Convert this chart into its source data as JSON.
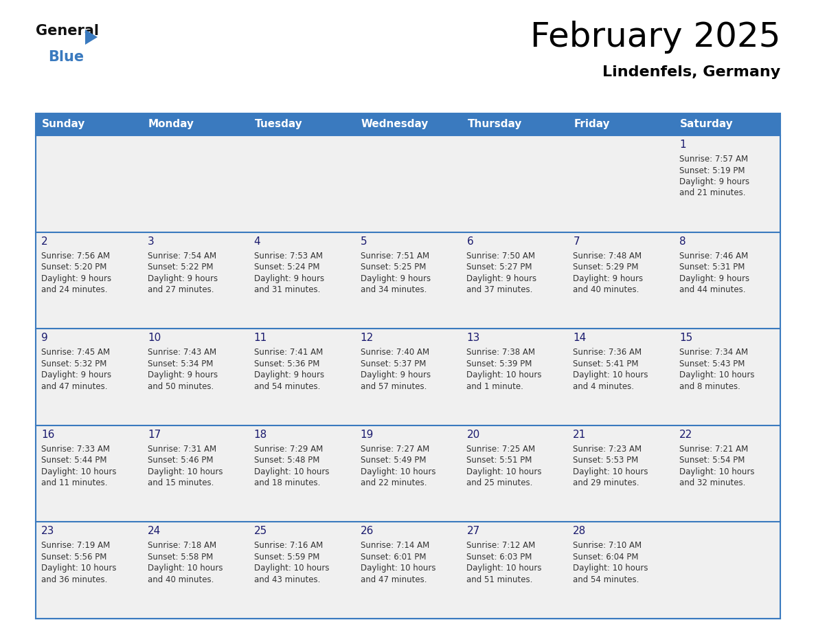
{
  "title": "February 2025",
  "subtitle": "Lindenfels, Germany",
  "header_bg": "#3a7abf",
  "header_text": "#ffffff",
  "cell_bg": "#f0f0f0",
  "day_number_color": "#1a1a6e",
  "info_text_color": "#333333",
  "separator_color": "#3a7abf",
  "days_of_week": [
    "Sunday",
    "Monday",
    "Tuesday",
    "Wednesday",
    "Thursday",
    "Friday",
    "Saturday"
  ],
  "calendar": [
    [
      {
        "day": null,
        "info": null
      },
      {
        "day": null,
        "info": null
      },
      {
        "day": null,
        "info": null
      },
      {
        "day": null,
        "info": null
      },
      {
        "day": null,
        "info": null
      },
      {
        "day": null,
        "info": null
      },
      {
        "day": 1,
        "info": "Sunrise: 7:57 AM\nSunset: 5:19 PM\nDaylight: 9 hours\nand 21 minutes."
      }
    ],
    [
      {
        "day": 2,
        "info": "Sunrise: 7:56 AM\nSunset: 5:20 PM\nDaylight: 9 hours\nand 24 minutes."
      },
      {
        "day": 3,
        "info": "Sunrise: 7:54 AM\nSunset: 5:22 PM\nDaylight: 9 hours\nand 27 minutes."
      },
      {
        "day": 4,
        "info": "Sunrise: 7:53 AM\nSunset: 5:24 PM\nDaylight: 9 hours\nand 31 minutes."
      },
      {
        "day": 5,
        "info": "Sunrise: 7:51 AM\nSunset: 5:25 PM\nDaylight: 9 hours\nand 34 minutes."
      },
      {
        "day": 6,
        "info": "Sunrise: 7:50 AM\nSunset: 5:27 PM\nDaylight: 9 hours\nand 37 minutes."
      },
      {
        "day": 7,
        "info": "Sunrise: 7:48 AM\nSunset: 5:29 PM\nDaylight: 9 hours\nand 40 minutes."
      },
      {
        "day": 8,
        "info": "Sunrise: 7:46 AM\nSunset: 5:31 PM\nDaylight: 9 hours\nand 44 minutes."
      }
    ],
    [
      {
        "day": 9,
        "info": "Sunrise: 7:45 AM\nSunset: 5:32 PM\nDaylight: 9 hours\nand 47 minutes."
      },
      {
        "day": 10,
        "info": "Sunrise: 7:43 AM\nSunset: 5:34 PM\nDaylight: 9 hours\nand 50 minutes."
      },
      {
        "day": 11,
        "info": "Sunrise: 7:41 AM\nSunset: 5:36 PM\nDaylight: 9 hours\nand 54 minutes."
      },
      {
        "day": 12,
        "info": "Sunrise: 7:40 AM\nSunset: 5:37 PM\nDaylight: 9 hours\nand 57 minutes."
      },
      {
        "day": 13,
        "info": "Sunrise: 7:38 AM\nSunset: 5:39 PM\nDaylight: 10 hours\nand 1 minute."
      },
      {
        "day": 14,
        "info": "Sunrise: 7:36 AM\nSunset: 5:41 PM\nDaylight: 10 hours\nand 4 minutes."
      },
      {
        "day": 15,
        "info": "Sunrise: 7:34 AM\nSunset: 5:43 PM\nDaylight: 10 hours\nand 8 minutes."
      }
    ],
    [
      {
        "day": 16,
        "info": "Sunrise: 7:33 AM\nSunset: 5:44 PM\nDaylight: 10 hours\nand 11 minutes."
      },
      {
        "day": 17,
        "info": "Sunrise: 7:31 AM\nSunset: 5:46 PM\nDaylight: 10 hours\nand 15 minutes."
      },
      {
        "day": 18,
        "info": "Sunrise: 7:29 AM\nSunset: 5:48 PM\nDaylight: 10 hours\nand 18 minutes."
      },
      {
        "day": 19,
        "info": "Sunrise: 7:27 AM\nSunset: 5:49 PM\nDaylight: 10 hours\nand 22 minutes."
      },
      {
        "day": 20,
        "info": "Sunrise: 7:25 AM\nSunset: 5:51 PM\nDaylight: 10 hours\nand 25 minutes."
      },
      {
        "day": 21,
        "info": "Sunrise: 7:23 AM\nSunset: 5:53 PM\nDaylight: 10 hours\nand 29 minutes."
      },
      {
        "day": 22,
        "info": "Sunrise: 7:21 AM\nSunset: 5:54 PM\nDaylight: 10 hours\nand 32 minutes."
      }
    ],
    [
      {
        "day": 23,
        "info": "Sunrise: 7:19 AM\nSunset: 5:56 PM\nDaylight: 10 hours\nand 36 minutes."
      },
      {
        "day": 24,
        "info": "Sunrise: 7:18 AM\nSunset: 5:58 PM\nDaylight: 10 hours\nand 40 minutes."
      },
      {
        "day": 25,
        "info": "Sunrise: 7:16 AM\nSunset: 5:59 PM\nDaylight: 10 hours\nand 43 minutes."
      },
      {
        "day": 26,
        "info": "Sunrise: 7:14 AM\nSunset: 6:01 PM\nDaylight: 10 hours\nand 47 minutes."
      },
      {
        "day": 27,
        "info": "Sunrise: 7:12 AM\nSunset: 6:03 PM\nDaylight: 10 hours\nand 51 minutes."
      },
      {
        "day": 28,
        "info": "Sunrise: 7:10 AM\nSunset: 6:04 PM\nDaylight: 10 hours\nand 54 minutes."
      },
      {
        "day": null,
        "info": null
      }
    ]
  ],
  "fig_width": 11.88,
  "fig_height": 9.18,
  "dpi": 100
}
